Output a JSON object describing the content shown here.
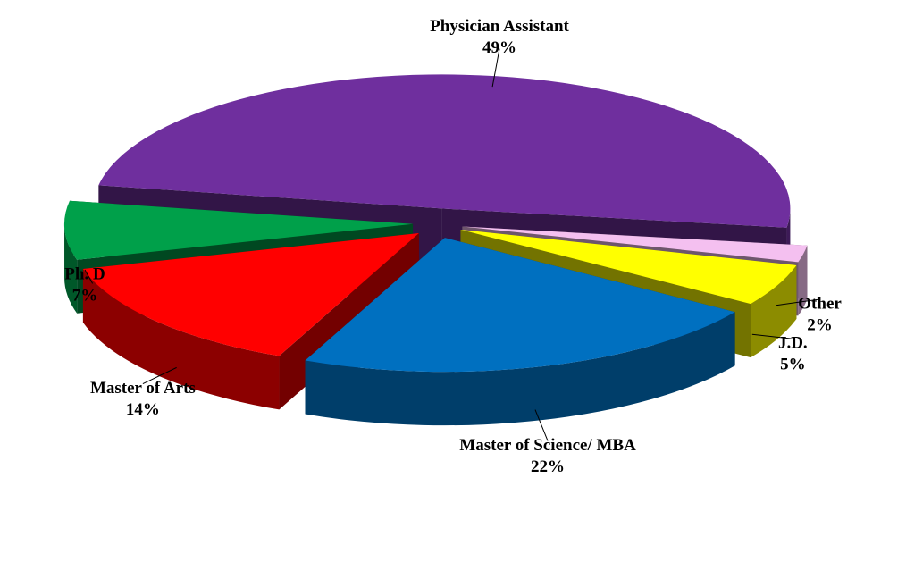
{
  "chart_data": {
    "type": "pie3d",
    "categories": [
      "Physician Assistant",
      "Other",
      "J.D.",
      "Master of Science/ MBA",
      "Master of Arts",
      "Ph. D"
    ],
    "values": [
      49,
      2,
      5,
      22,
      14,
      7
    ],
    "value_labels": [
      "49%",
      "2%",
      "5%",
      "22%",
      "14%",
      "7%"
    ],
    "colors": [
      "#6f2f9e",
      "#f4c0f0",
      "#ffff00",
      "#0070c0",
      "#ff0000",
      "#00a04a"
    ]
  }
}
